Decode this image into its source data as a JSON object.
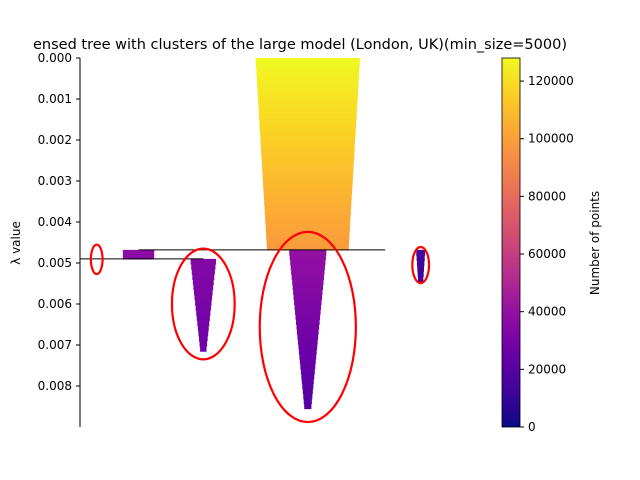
{
  "chart_data": {
    "type": "condensed_tree",
    "title": "ensed tree with clusters of the large model (London, UK)(min_size=5000)",
    "ylabel": "λ value",
    "ylim": [
      0.0,
      0.009
    ],
    "y_ticks": [
      {
        "value": 0.0,
        "label": "0.000"
      },
      {
        "value": 0.001,
        "label": "0.001"
      },
      {
        "value": 0.002,
        "label": "0.002"
      },
      {
        "value": 0.003,
        "label": "0.003"
      },
      {
        "value": 0.004,
        "label": "0.004"
      },
      {
        "value": 0.005,
        "label": "0.005"
      },
      {
        "value": 0.006,
        "label": "0.006"
      },
      {
        "value": 0.007,
        "label": "0.007"
      },
      {
        "value": 0.008,
        "label": "0.008"
      }
    ],
    "colorbar": {
      "label": "Number of points",
      "range": [
        0,
        128000
      ],
      "ticks": [
        {
          "value": 0,
          "label": "0"
        },
        {
          "value": 20000,
          "label": "20000"
        },
        {
          "value": 40000,
          "label": "40000"
        },
        {
          "value": 60000,
          "label": "60000"
        },
        {
          "value": 80000,
          "label": "80000"
        },
        {
          "value": 100000,
          "label": "100000"
        },
        {
          "value": 120000,
          "label": "120000"
        }
      ],
      "colormap": "plasma"
    },
    "branches": [
      {
        "name": "root",
        "center": 0.545,
        "lambda_start": 0.0,
        "lambda_end": 0.00468,
        "points_start": 128000,
        "points_end": 98000,
        "width_start": 0.25,
        "width_end": 0.195
      },
      {
        "name": "small-left",
        "center": 0.14,
        "lambda_start": 0.00468,
        "lambda_end": 0.0049,
        "points_start": 38000,
        "points_end": 36000,
        "width_start": 0.075,
        "width_end": 0.075
      },
      {
        "name": "cluster-middle-left",
        "center": 0.295,
        "lambda_start": 0.0049,
        "lambda_end": 0.00715,
        "points_start": 34000,
        "points_end": 27000,
        "width_start": 0.062,
        "width_end": 0.014
      },
      {
        "name": "cluster-middle-right",
        "center": 0.545,
        "lambda_start": 0.00468,
        "lambda_end": 0.00855,
        "points_start": 40000,
        "points_end": 18000,
        "width_start": 0.09,
        "width_end": 0.016
      },
      {
        "name": "cluster-far-right",
        "center": 0.815,
        "lambda_start": 0.00468,
        "lambda_end": 0.00545,
        "points_start": 14000,
        "points_end": 12000,
        "width_start": 0.022,
        "width_end": 0.012
      }
    ],
    "splits": [
      {
        "lambda": 0.00468,
        "x_from": 0.14,
        "x_to": 0.73
      },
      {
        "lambda": 0.0049,
        "x_from": 0.0,
        "x_to": 0.295
      }
    ],
    "selected_cluster_ellipses": [
      {
        "name": "far-left",
        "cx": 0.04,
        "cy": 0.00491,
        "rx": 0.014,
        "ry": 0.00036
      },
      {
        "name": "middle-left",
        "cx": 0.295,
        "cy": 0.006,
        "rx": 0.075,
        "ry": 0.00135
      },
      {
        "name": "middle-right",
        "cx": 0.545,
        "cy": 0.00656,
        "rx": 0.115,
        "ry": 0.00232
      },
      {
        "name": "far-right",
        "cx": 0.815,
        "cy": 0.00505,
        "rx": 0.02,
        "ry": 0.00044
      }
    ],
    "grid": false,
    "highlight_color": "#ff0000",
    "line_color": "#000000"
  }
}
